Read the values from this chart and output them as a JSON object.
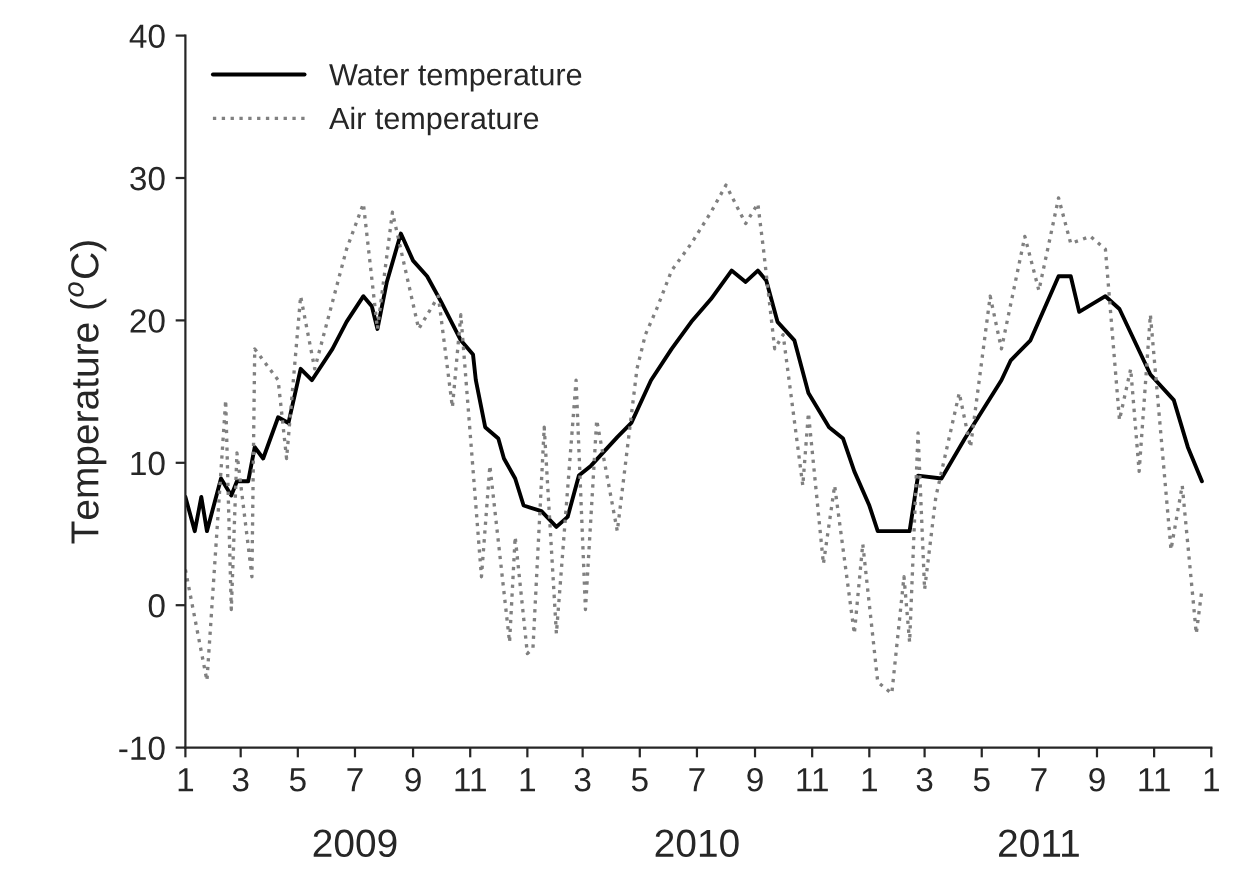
{
  "chart_data": {
    "type": "line",
    "ylabel": "Temperature ($^{o}$C)",
    "xlim": [
      "2009-01-01",
      "2012-01-01"
    ],
    "xticks": [
      {
        "value": "2009-01",
        "label": "1"
      },
      {
        "value": "2009-03",
        "label": "3"
      },
      {
        "value": "2009-05",
        "label": "5"
      },
      {
        "value": "2009-07",
        "label": "7"
      },
      {
        "value": "2009-09",
        "label": "9"
      },
      {
        "value": "2009-11",
        "label": "11"
      },
      {
        "value": "2010-01",
        "label": "1"
      },
      {
        "value": "2010-03",
        "label": "3"
      },
      {
        "value": "2010-05",
        "label": "5"
      },
      {
        "value": "2010-07",
        "label": "7"
      },
      {
        "value": "2010-09",
        "label": "9"
      },
      {
        "value": "2010-11",
        "label": "11"
      },
      {
        "value": "2011-01",
        "label": "1"
      },
      {
        "value": "2011-03",
        "label": "3"
      },
      {
        "value": "2011-05",
        "label": "5"
      },
      {
        "value": "2011-07",
        "label": "7"
      },
      {
        "value": "2011-09",
        "label": "9"
      },
      {
        "value": "2011-11",
        "label": "11"
      },
      {
        "value": "2012-01",
        "label": "1"
      }
    ],
    "x2lim": [
      "2009-01-01",
      "2012-01-01"
    ],
    "x2ticks": [
      {
        "value": "2009-07",
        "label": "2009"
      },
      {
        "value": "2010-07",
        "label": "2010"
      },
      {
        "value": "2011-07",
        "label": "2011"
      }
    ],
    "ylim": [
      -10,
      40
    ],
    "yticks": [
      -10,
      0,
      10,
      20,
      30,
      40
    ],
    "grid": false,
    "legend": "top left",
    "marker": "none",
    "series": [
      {
        "name": "Water temperature",
        "color": "#000000",
        "line_style": "solid",
        "x": [
          "2009-01-01",
          "2009-01-11",
          "2009-01-18",
          "2009-01-24",
          "2009-02-08",
          "2009-02-19",
          "2009-02-25",
          "2009-03-09",
          "2009-03-16",
          "2009-03-25",
          "2009-04-10",
          "2009-04-21",
          "2009-05-04",
          "2009-05-16",
          "2009-06-07",
          "2009-06-22",
          "2009-07-10",
          "2009-07-19",
          "2009-07-25",
          "2009-08-04",
          "2009-08-19",
          "2009-09-01",
          "2009-09-16",
          "2009-10-01",
          "2009-10-22",
          "2009-11-04",
          "2009-11-07",
          "2009-11-17",
          "2009-12-01",
          "2009-12-07",
          "2009-12-19",
          "2009-12-28",
          "2010-01-16",
          "2010-02-01",
          "2010-02-13",
          "2010-02-25",
          "2010-03-10",
          "2010-04-07",
          "2010-04-22",
          "2010-05-13",
          "2010-06-04",
          "2010-06-25",
          "2010-07-16",
          "2010-08-07",
          "2010-08-22",
          "2010-09-04",
          "2010-09-13",
          "2010-09-25",
          "2010-10-13",
          "2010-10-28",
          "2010-11-19",
          "2010-12-04",
          "2010-12-16",
          "2011-01-01",
          "2011-01-10",
          "2011-01-28",
          "2011-02-13",
          "2011-02-22",
          "2011-03-19",
          "2011-04-13",
          "2011-05-22",
          "2011-06-01",
          "2011-06-22",
          "2011-07-22",
          "2011-08-04",
          "2011-08-13",
          "2011-09-10",
          "2011-09-25",
          "2011-10-28",
          "2011-11-22",
          "2011-12-07",
          "2011-12-22"
        ],
        "values": [
          7.6,
          5.2,
          7.6,
          5.2,
          8.9,
          7.7,
          8.7,
          8.7,
          11.1,
          10.3,
          13.2,
          12.8,
          16.6,
          15.8,
          18,
          19.9,
          21.7,
          21,
          19.4,
          22.7,
          26.1,
          24.2,
          23.1,
          21.3,
          18.6,
          17.6,
          15.8,
          12.5,
          11.7,
          10.3,
          8.9,
          7,
          6.6,
          5.5,
          6.2,
          9.1,
          9.8,
          11.8,
          12.8,
          15.8,
          18,
          19.9,
          21.5,
          23.5,
          22.7,
          23.5,
          22.8,
          19.9,
          18.6,
          14.9,
          12.5,
          11.7,
          9.4,
          7,
          5.2,
          5.2,
          5.2,
          9.1,
          8.9,
          11.7,
          15.8,
          17.2,
          18.6,
          23.1,
          23.1,
          20.6,
          21.7,
          20.8,
          16.2,
          14.4,
          11.1,
          8.7
        ]
      },
      {
        "name": "Air temperature",
        "color": "#808080",
        "line_style": "dotted",
        "x": [
          "2009-01-01",
          "2009-01-24",
          "2009-02-13",
          "2009-02-19",
          "2009-02-25",
          "2009-03-13",
          "2009-03-16",
          "2009-04-10",
          "2009-04-19",
          "2009-05-04",
          "2009-05-19",
          "2009-06-07",
          "2009-06-22",
          "2009-07-10",
          "2009-07-25",
          "2009-08-10",
          "2009-09-07",
          "2009-09-28",
          "2009-10-13",
          "2009-10-22",
          "2009-11-13",
          "2009-11-22",
          "2009-12-13",
          "2009-12-19",
          "2010-01-01",
          "2010-01-07",
          "2010-01-19",
          "2010-02-01",
          "2010-02-22",
          "2010-03-04",
          "2010-03-16",
          "2010-04-07",
          "2010-04-28",
          "2010-05-07",
          "2010-05-19",
          "2010-06-04",
          "2010-06-25",
          "2010-07-16",
          "2010-08-01",
          "2010-08-22",
          "2010-09-04",
          "2010-09-10",
          "2010-09-22",
          "2010-10-01",
          "2010-10-22",
          "2010-10-28",
          "2010-11-13",
          "2010-11-25",
          "2010-12-16",
          "2010-12-25",
          "2011-01-10",
          "2011-01-25",
          "2011-02-07",
          "2011-02-13",
          "2011-02-22",
          "2011-03-01",
          "2011-03-13",
          "2011-04-07",
          "2011-04-19",
          "2011-05-10",
          "2011-05-22",
          "2011-06-16",
          "2011-07-01",
          "2011-07-22",
          "2011-08-04",
          "2011-08-25",
          "2011-09-10",
          "2011-09-25",
          "2011-10-07",
          "2011-10-16",
          "2011-10-28",
          "2011-11-19",
          "2011-12-01",
          "2011-12-16",
          "2011-12-22"
        ],
        "values": [
          2.5,
          -5.3,
          14.4,
          -0.3,
          10.7,
          2,
          18,
          15.8,
          10.3,
          21.7,
          16.6,
          21.3,
          25,
          28.2,
          19.4,
          27.6,
          19.4,
          21.7,
          13.9,
          20.4,
          2,
          9.8,
          -2.6,
          4.8,
          -3.4,
          -3,
          12.5,
          -2,
          15.8,
          -0.3,
          13,
          5.2,
          16.6,
          19,
          20.8,
          23.5,
          25.4,
          27.6,
          29.5,
          26.8,
          28.2,
          25,
          18,
          19,
          8.4,
          13.5,
          2.9,
          8.4,
          -2,
          4.3,
          -5.4,
          -6.2,
          2,
          -2.6,
          12.1,
          1.1,
          7.6,
          14.9,
          11.1,
          21.7,
          18,
          25.9,
          22.1,
          28.6,
          25.4,
          25.9,
          25,
          13,
          16.6,
          9.4,
          20.4,
          3.9,
          8.4,
          -2,
          1.1
        ]
      }
    ]
  }
}
